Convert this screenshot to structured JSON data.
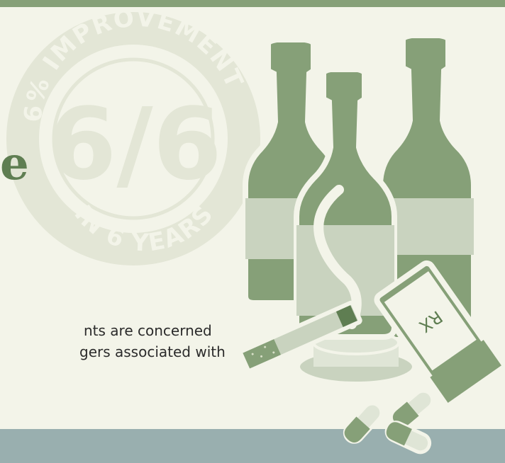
{
  "badge": {
    "arc_top": "6% IMPROVEMENT",
    "big_numeral": "6/6",
    "arc_bottom": "IN 6 YEARS"
  },
  "headline_fragment": "e",
  "body": {
    "line1": "nts are concerned",
    "line2": "gers associated with"
  },
  "bottle_label": "RX",
  "colors": {
    "background": "#f3f4e9",
    "top_band": "#86a078",
    "bottom_band": "#99afaf",
    "bottle_green": "#86a078",
    "label_pale": "#c9d3bf",
    "badge_tint": "#e3e6d6",
    "headline_green": "#5f7e52"
  }
}
